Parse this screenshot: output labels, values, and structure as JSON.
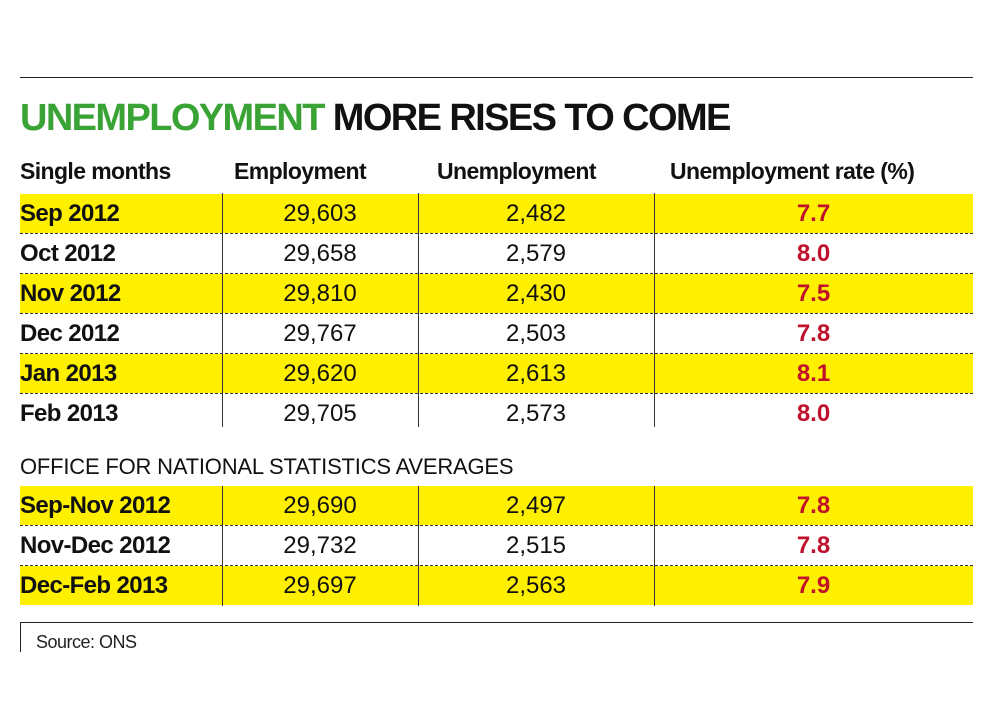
{
  "chart_data": {
    "type": "table",
    "title": {
      "highlight": "UNEMPLOYMENT",
      "rest": "MORE RISES TO COME"
    },
    "columns": [
      "Single months",
      "Employment",
      "Unemployment",
      "Unemployment rate (%)"
    ],
    "monthly_rows": [
      {
        "period": "Sep 2012",
        "employment": "29,603",
        "unemployment": "2,482",
        "rate": "7.7",
        "highlight": true
      },
      {
        "period": "Oct 2012",
        "employment": "29,658",
        "unemployment": "2,579",
        "rate": "8.0",
        "highlight": false
      },
      {
        "period": "Nov 2012",
        "employment": "29,810",
        "unemployment": "2,430",
        "rate": "7.5",
        "highlight": true
      },
      {
        "period": "Dec 2012",
        "employment": "29,767",
        "unemployment": "2,503",
        "rate": "7.8",
        "highlight": false
      },
      {
        "period": "Jan 2013",
        "employment": "29,620",
        "unemployment": "2,613",
        "rate": "8.1",
        "highlight": true
      },
      {
        "period": "Feb 2013",
        "employment": "29,705",
        "unemployment": "2,573",
        "rate": "8.0",
        "highlight": false
      }
    ],
    "section_label": "OFFICE FOR NATIONAL STATISTICS AVERAGES",
    "average_rows": [
      {
        "period": "Sep-Nov 2012",
        "employment": "29,690",
        "unemployment": "2,497",
        "rate": "7.8",
        "highlight": true
      },
      {
        "period": "Nov-Dec 2012",
        "employment": "29,732",
        "unemployment": "2,515",
        "rate": "7.8",
        "highlight": false
      },
      {
        "period": "Dec-Feb 2013",
        "employment": "29,697",
        "unemployment": "2,563",
        "rate": "7.9",
        "highlight": true
      }
    ],
    "source": "Source: ONS"
  },
  "colors": {
    "title_highlight": "#3aa335",
    "row_highlight": "#fff000",
    "rate_text": "#c0122c"
  }
}
